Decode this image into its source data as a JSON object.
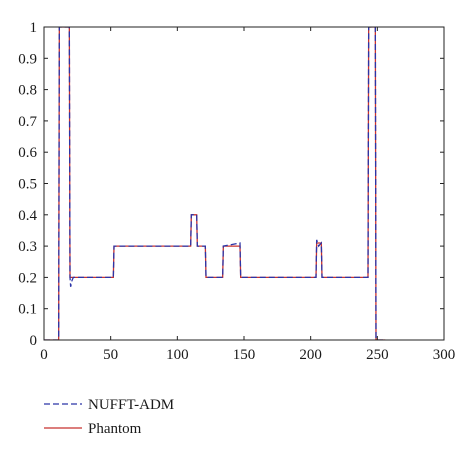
{
  "chart_data": {
    "type": "line",
    "title": "",
    "xlabel": "",
    "ylabel": "",
    "xlim": [
      0,
      300
    ],
    "ylim": [
      0,
      1
    ],
    "x_ticks": [
      0,
      50,
      100,
      150,
      200,
      250,
      300
    ],
    "y_ticks": [
      0,
      0.1,
      0.2,
      0.3,
      0.4,
      0.5,
      0.6,
      0.7,
      0.8,
      0.9,
      1
    ],
    "x_tick_labels": [
      "0",
      "50",
      "100",
      "150",
      "200",
      "250",
      "300"
    ],
    "y_tick_labels": [
      "0",
      "0.1",
      "0.2",
      "0.3",
      "0.4",
      "0.5",
      "0.6",
      "0.7",
      "0.8",
      "0.9",
      "1"
    ],
    "grid": false,
    "legend_position": "bottom-left",
    "series": [
      {
        "name": "Phantom",
        "color": "#c8322f",
        "style": "solid",
        "points": [
          [
            0,
            0
          ],
          [
            11,
            0
          ],
          [
            11.5,
            1
          ],
          [
            19,
            1
          ],
          [
            19.5,
            0.2
          ],
          [
            52,
            0.2
          ],
          [
            52.5,
            0.3
          ],
          [
            110,
            0.3
          ],
          [
            110.5,
            0.4
          ],
          [
            114.5,
            0.4
          ],
          [
            115,
            0.3
          ],
          [
            121,
            0.3
          ],
          [
            121.5,
            0.2
          ],
          [
            134,
            0.2
          ],
          [
            134.5,
            0.3
          ],
          [
            147,
            0.3
          ],
          [
            147.5,
            0.2
          ],
          [
            204,
            0.2
          ],
          [
            204.5,
            0.31
          ],
          [
            208,
            0.31
          ],
          [
            208.5,
            0.2
          ],
          [
            243,
            0.2
          ],
          [
            243.5,
            1
          ],
          [
            248.5,
            1
          ],
          [
            249,
            0
          ],
          [
            256,
            0
          ]
        ]
      },
      {
        "name": "NUFFT-ADM",
        "color": "#2b35a8",
        "style": "dashed",
        "points": [
          [
            0,
            0
          ],
          [
            11,
            0
          ],
          [
            11.5,
            1
          ],
          [
            19,
            1
          ],
          [
            19.5,
            0.2
          ],
          [
            20,
            0.17
          ],
          [
            21,
            0.19
          ],
          [
            22,
            0.2
          ],
          [
            52,
            0.2
          ],
          [
            52.5,
            0.3
          ],
          [
            70,
            0.3
          ],
          [
            72,
            0.3
          ],
          [
            110,
            0.3
          ],
          [
            110.5,
            0.4
          ],
          [
            114.5,
            0.4
          ],
          [
            115,
            0.3
          ],
          [
            121,
            0.3
          ],
          [
            121.5,
            0.2
          ],
          [
            134,
            0.2
          ],
          [
            134.5,
            0.3
          ],
          [
            147,
            0.31
          ],
          [
            147.5,
            0.2
          ],
          [
            204,
            0.2
          ],
          [
            204.5,
            0.32
          ],
          [
            206,
            0.3
          ],
          [
            208,
            0.31
          ],
          [
            208.5,
            0.2
          ],
          [
            243,
            0.2
          ],
          [
            243.5,
            1
          ],
          [
            248.5,
            1
          ],
          [
            249,
            0
          ],
          [
            256,
            0
          ]
        ]
      }
    ],
    "legend": [
      {
        "label": "NUFFT-ADM",
        "color": "#2b35a8",
        "style": "dashed"
      },
      {
        "label": "Phantom",
        "color": "#c8322f",
        "style": "solid"
      }
    ]
  }
}
